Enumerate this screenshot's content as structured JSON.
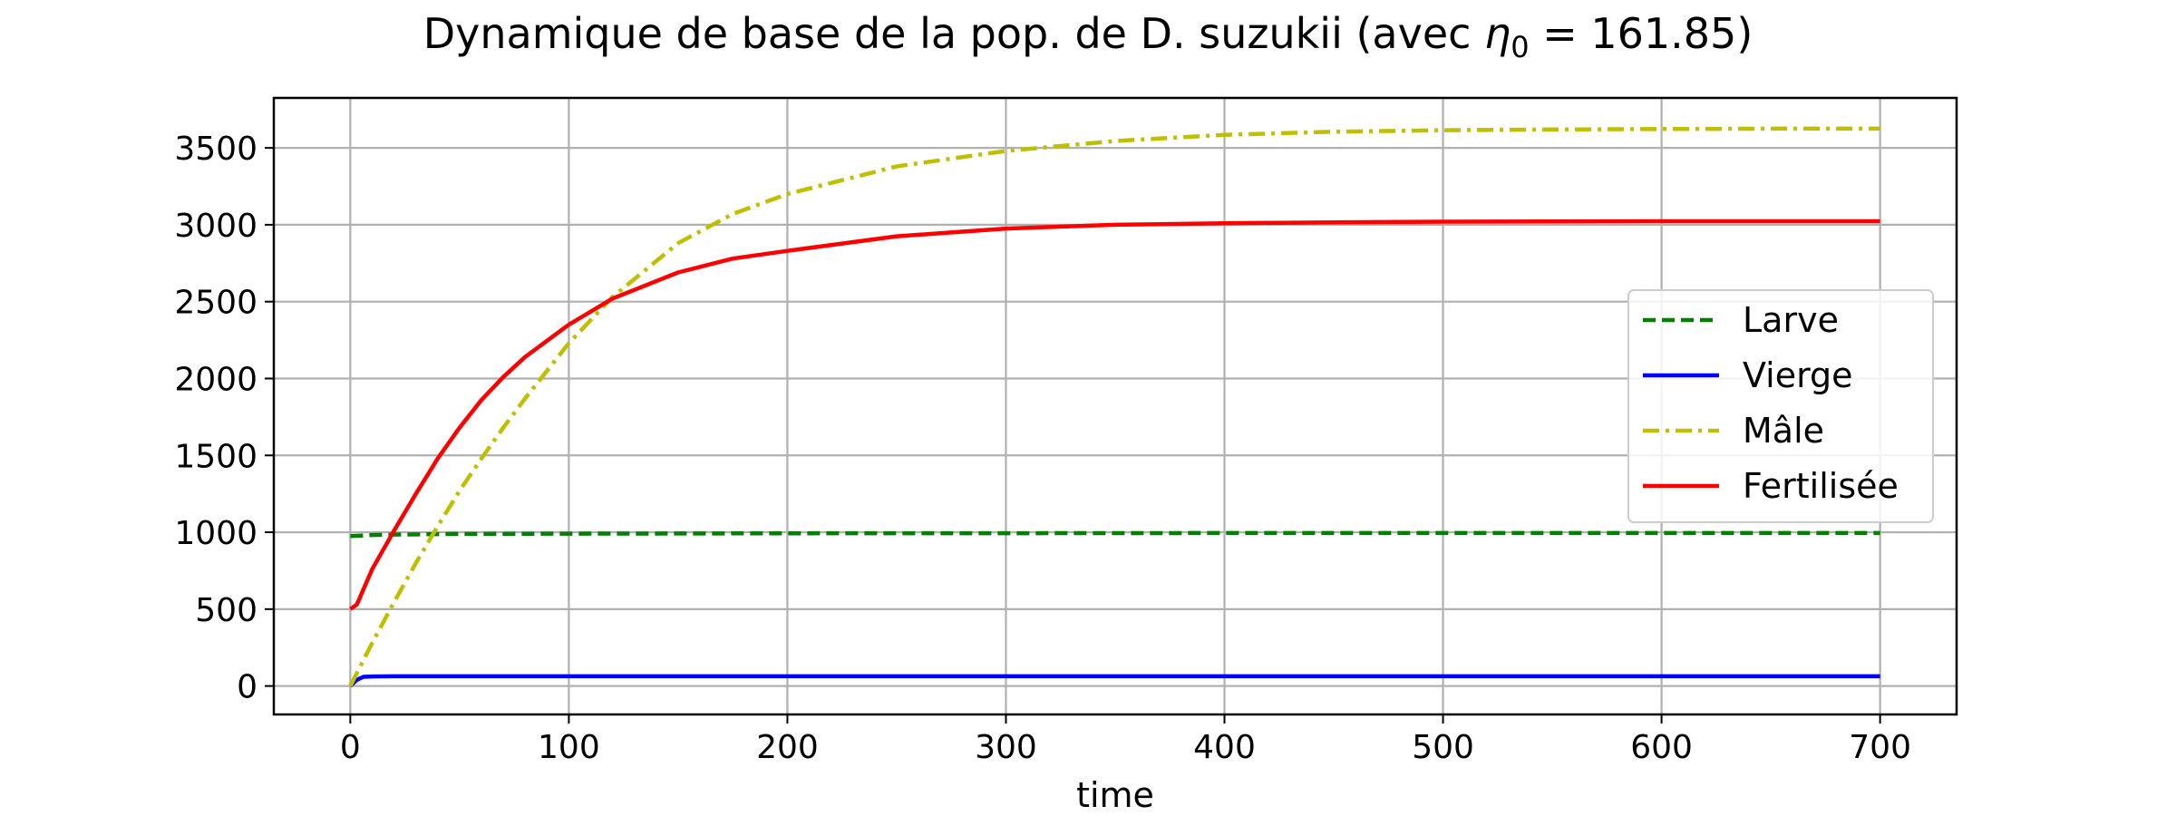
{
  "chart_data": {
    "type": "line",
    "title": "Dynamique de base de la pop. de D. suzukii (avec η₀ = 161.85)",
    "title_parts": {
      "prefix": "Dynamique de base de la pop. de D. suzukii (avec ",
      "symbol": "η",
      "subscript": "0",
      "suffix": " = 161.85)"
    },
    "xlabel": "time",
    "ylabel": "",
    "xlim": [
      -35,
      735
    ],
    "ylim": [
      -185,
      3825
    ],
    "xticks": [
      0,
      100,
      200,
      300,
      400,
      500,
      600,
      700
    ],
    "yticks": [
      0,
      500,
      1000,
      1500,
      2000,
      2500,
      3000,
      3500
    ],
    "grid": true,
    "legend_position": "center-right",
    "series": [
      {
        "name": "Larve",
        "color": "#008000",
        "linestyle": "dashed",
        "x": [
          0,
          5,
          10,
          20,
          50,
          100,
          200,
          300,
          400,
          500,
          600,
          700
        ],
        "y": [
          975,
          978,
          982,
          985,
          989,
          991,
          993,
          994,
          995,
          995,
          995,
          995
        ]
      },
      {
        "name": "Vierge",
        "color": "#0000ff",
        "linestyle": "solid",
        "x": [
          0,
          3,
          6,
          10,
          20,
          50,
          100,
          200,
          300,
          400,
          500,
          600,
          700
        ],
        "y": [
          0,
          40,
          60,
          62,
          63,
          63,
          63,
          63,
          63,
          63,
          63,
          63,
          63
        ]
      },
      {
        "name": "Mâle",
        "color": "#bfbf00",
        "linestyle": "dashdot",
        "x": [
          0,
          10,
          20,
          30,
          40,
          50,
          60,
          70,
          80,
          100,
          120,
          150,
          175,
          200,
          250,
          300,
          350,
          400,
          450,
          500,
          550,
          600,
          650,
          700
        ],
        "y": [
          0,
          280,
          545,
          800,
          1040,
          1270,
          1480,
          1680,
          1870,
          2230,
          2530,
          2880,
          3070,
          3200,
          3380,
          3480,
          3545,
          3585,
          3605,
          3615,
          3620,
          3623,
          3625,
          3625
        ]
      },
      {
        "name": "Fertilisée",
        "color": "#ff0000",
        "linestyle": "solid",
        "x": [
          0,
          3,
          10,
          20,
          30,
          40,
          50,
          60,
          70,
          80,
          100,
          120,
          150,
          175,
          200,
          250,
          300,
          350,
          400,
          450,
          500,
          550,
          600,
          650,
          700
        ],
        "y": [
          500,
          530,
          760,
          1010,
          1250,
          1480,
          1680,
          1860,
          2010,
          2140,
          2350,
          2520,
          2690,
          2780,
          2830,
          2925,
          2975,
          3000,
          3010,
          3016,
          3020,
          3022,
          3023,
          3023,
          3023
        ]
      }
    ]
  }
}
